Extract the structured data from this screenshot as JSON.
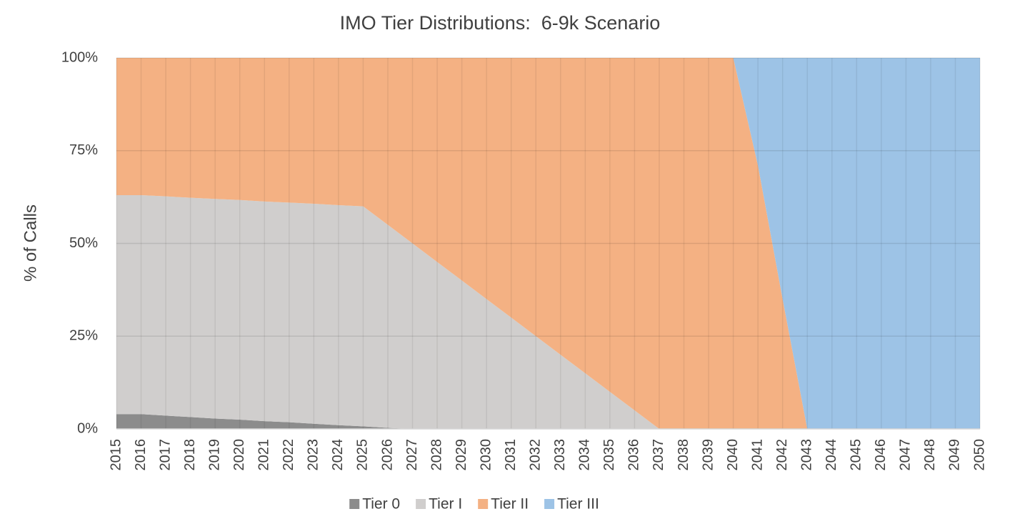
{
  "chart_data": {
    "type": "stacked_area",
    "title": "IMO Tier Distributions:  6-9k Scenario",
    "y_label": "% of Calls",
    "categories": [
      "2015",
      "2016",
      "2017",
      "2018",
      "2019",
      "2020",
      "2021",
      "2022",
      "2023",
      "2024",
      "2025",
      "2026",
      "2027",
      "2028",
      "2029",
      "2030",
      "2031",
      "2032",
      "2033",
      "2034",
      "2035",
      "2036",
      "2037",
      "2038",
      "2039",
      "2040",
      "2041",
      "2042",
      "2043",
      "2044",
      "2045",
      "2046",
      "2047",
      "2048",
      "2049",
      "2050"
    ],
    "series": [
      {
        "name": "Tier 0",
        "color": "#8c8c8c",
        "values": [
          4,
          4,
          3.6,
          3.2,
          2.8,
          2.5,
          2.1,
          1.8,
          1.4,
          1.0,
          0.7,
          0.3,
          0,
          0,
          0,
          0,
          0,
          0,
          0,
          0,
          0,
          0,
          0,
          0,
          0,
          0,
          0,
          0,
          0,
          0,
          0,
          0,
          0,
          0,
          0,
          0
        ]
      },
      {
        "name": "Tier I",
        "color": "#d0cecd",
        "values": [
          59,
          59,
          59.1,
          59.1,
          59.2,
          59.2,
          59.2,
          59.2,
          59.3,
          59.3,
          59.3,
          54.7,
          50,
          45,
          40,
          35,
          30,
          25,
          20,
          15,
          10,
          5,
          0,
          0,
          0,
          0,
          0,
          0,
          0,
          0,
          0,
          0,
          0,
          0,
          0,
          0
        ]
      },
      {
        "name": "Tier II",
        "color": "#f4b183",
        "values": [
          37,
          37,
          37.3,
          37.7,
          38,
          38.3,
          38.7,
          39,
          39.3,
          39.7,
          40,
          45,
          50,
          55,
          60,
          65,
          70,
          75,
          80,
          85,
          90,
          95,
          100,
          100,
          100,
          100,
          71,
          35,
          0,
          0,
          0,
          0,
          0,
          0,
          0,
          0
        ]
      },
      {
        "name": "Tier III",
        "color": "#9dc3e6",
        "values": [
          0,
          0,
          0,
          0,
          0,
          0,
          0,
          0,
          0,
          0,
          0,
          0,
          0,
          0,
          0,
          0,
          0,
          0,
          0,
          0,
          0,
          0,
          0,
          0,
          0,
          0,
          29,
          65,
          100,
          100,
          100,
          100,
          100,
          100,
          100,
          100
        ]
      }
    ],
    "ylim": [
      0,
      100
    ],
    "yticks": [
      {
        "value": 0,
        "label": "0%"
      },
      {
        "value": 25,
        "label": "25%"
      },
      {
        "value": 50,
        "label": "50%"
      },
      {
        "value": 75,
        "label": "75%"
      },
      {
        "value": 100,
        "label": "100%"
      }
    ],
    "grid": true,
    "legend": "bottom"
  }
}
